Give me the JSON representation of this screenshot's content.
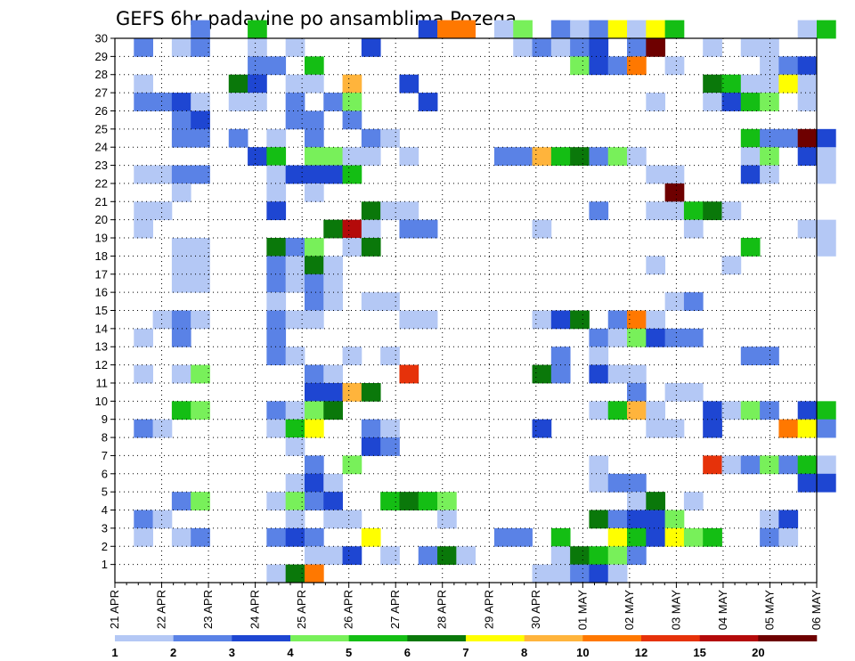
{
  "chart_data": {
    "type": "heatmap",
    "title": "GEFS 6hr padavine po ansamblima Pozega",
    "x_tick_labels": [
      "21 APR",
      "22 APR",
      "23 APR",
      "24 APR",
      "25 APR",
      "26 APR",
      "27 APR",
      "28 APR",
      "29 APR",
      "30 APR",
      "01 MAY",
      "02 MAY",
      "03 MAY",
      "04 MAY",
      "05 MAY",
      "06 MAY"
    ],
    "y_tick_labels": [
      "1",
      "2",
      "3",
      "4",
      "5",
      "6",
      "7",
      "8",
      "9",
      "10",
      "11",
      "12",
      "13",
      "14",
      "15",
      "16",
      "17",
      "18",
      "19",
      "20",
      "21",
      "22",
      "23",
      "24",
      "25",
      "26",
      "27",
      "28",
      "29",
      "30"
    ],
    "y_range": [
      0,
      30
    ],
    "x_range_hours": [
      0,
      360
    ],
    "time_step_hours": 6,
    "grid": "dotted",
    "colorbar": {
      "levels": [
        "1",
        "2",
        "3",
        "4",
        "5",
        "6",
        "7",
        "8",
        "10",
        "12",
        "15",
        "20"
      ],
      "colors": [
        "#b4c8f5",
        "#5a82e6",
        "#1e46d2",
        "#78f05a",
        "#14be14",
        "#0a780a",
        "#ffff00",
        "#ffb43c",
        "#ff7800",
        "#e6320a",
        "#b40a0a",
        "#6e0000"
      ]
    },
    "class_meaning": "0:1-2, 1:2-3, 2:3-4, 3:4-5, 4:5-6, 5:6-7, 6:7-8, 7:8-10, 8:10-12, 9:12-15, 10:15-20, 11:>20 mm",
    "cells": [
      [
        30,
        4,
        1
      ],
      [
        30,
        7,
        4
      ],
      [
        30,
        16,
        2
      ],
      [
        30,
        17,
        8
      ],
      [
        30,
        18,
        8
      ],
      [
        30,
        20,
        0
      ],
      [
        30,
        21,
        3
      ],
      [
        30,
        23,
        1
      ],
      [
        30,
        24,
        0
      ],
      [
        30,
        25,
        1
      ],
      [
        30,
        26,
        6
      ],
      [
        30,
        27,
        0
      ],
      [
        30,
        28,
        6
      ],
      [
        30,
        29,
        4
      ],
      [
        30,
        36,
        0
      ],
      [
        30,
        37,
        4
      ],
      [
        29,
        1,
        1
      ],
      [
        29,
        3,
        0
      ],
      [
        29,
        4,
        1
      ],
      [
        29,
        7,
        0
      ],
      [
        29,
        9,
        0
      ],
      [
        29,
        13,
        2
      ],
      [
        29,
        21,
        0
      ],
      [
        29,
        22,
        1
      ],
      [
        29,
        23,
        0
      ],
      [
        29,
        24,
        1
      ],
      [
        29,
        25,
        2
      ],
      [
        29,
        27,
        1
      ],
      [
        29,
        28,
        11
      ],
      [
        29,
        31,
        0
      ],
      [
        29,
        33,
        0
      ],
      [
        29,
        34,
        0
      ],
      [
        28,
        7,
        1
      ],
      [
        28,
        8,
        1
      ],
      [
        28,
        10,
        4
      ],
      [
        28,
        24,
        3
      ],
      [
        28,
        25,
        2
      ],
      [
        28,
        26,
        1
      ],
      [
        28,
        27,
        8
      ],
      [
        28,
        29,
        0
      ],
      [
        28,
        34,
        0
      ],
      [
        28,
        35,
        1
      ],
      [
        28,
        36,
        2
      ],
      [
        27,
        1,
        0
      ],
      [
        27,
        6,
        5
      ],
      [
        27,
        7,
        2
      ],
      [
        27,
        9,
        0
      ],
      [
        27,
        10,
        0
      ],
      [
        27,
        12,
        7
      ],
      [
        27,
        15,
        2
      ],
      [
        27,
        31,
        5
      ],
      [
        27,
        32,
        4
      ],
      [
        27,
        33,
        0
      ],
      [
        27,
        34,
        0
      ],
      [
        27,
        35,
        6
      ],
      [
        27,
        36,
        0
      ],
      [
        26,
        1,
        1
      ],
      [
        26,
        2,
        1
      ],
      [
        26,
        3,
        2
      ],
      [
        26,
        4,
        0
      ],
      [
        26,
        6,
        0
      ],
      [
        26,
        7,
        0
      ],
      [
        26,
        9,
        1
      ],
      [
        26,
        11,
        1
      ],
      [
        26,
        12,
        3
      ],
      [
        26,
        16,
        2
      ],
      [
        26,
        28,
        0
      ],
      [
        26,
        31,
        0
      ],
      [
        26,
        32,
        2
      ],
      [
        26,
        33,
        4
      ],
      [
        26,
        34,
        3
      ],
      [
        26,
        36,
        0
      ],
      [
        25,
        3,
        1
      ],
      [
        25,
        4,
        2
      ],
      [
        25,
        9,
        1
      ],
      [
        25,
        10,
        1
      ],
      [
        25,
        12,
        1
      ],
      [
        24,
        3,
        1
      ],
      [
        24,
        4,
        1
      ],
      [
        24,
        6,
        1
      ],
      [
        24,
        8,
        0
      ],
      [
        24,
        10,
        1
      ],
      [
        24,
        13,
        1
      ],
      [
        24,
        14,
        0
      ],
      [
        24,
        33,
        4
      ],
      [
        24,
        34,
        1
      ],
      [
        24,
        35,
        1
      ],
      [
        24,
        36,
        11
      ],
      [
        24,
        37,
        2
      ],
      [
        23,
        7,
        2
      ],
      [
        23,
        8,
        4
      ],
      [
        23,
        10,
        3
      ],
      [
        23,
        11,
        3
      ],
      [
        23,
        12,
        0
      ],
      [
        23,
        13,
        0
      ],
      [
        23,
        15,
        0
      ],
      [
        23,
        20,
        1
      ],
      [
        23,
        21,
        1
      ],
      [
        23,
        22,
        7
      ],
      [
        23,
        23,
        4
      ],
      [
        23,
        24,
        5
      ],
      [
        23,
        25,
        1
      ],
      [
        23,
        26,
        3
      ],
      [
        23,
        27,
        0
      ],
      [
        23,
        33,
        0
      ],
      [
        23,
        34,
        3
      ],
      [
        23,
        36,
        2
      ],
      [
        23,
        37,
        0
      ],
      [
        22,
        1,
        0
      ],
      [
        22,
        2,
        0
      ],
      [
        22,
        3,
        1
      ],
      [
        22,
        4,
        1
      ],
      [
        22,
        8,
        0
      ],
      [
        22,
        9,
        2
      ],
      [
        22,
        10,
        2
      ],
      [
        22,
        11,
        2
      ],
      [
        22,
        12,
        4
      ],
      [
        22,
        28,
        0
      ],
      [
        22,
        29,
        0
      ],
      [
        22,
        33,
        2
      ],
      [
        22,
        34,
        0
      ],
      [
        22,
        37,
        0
      ],
      [
        21,
        3,
        0
      ],
      [
        21,
        8,
        0
      ],
      [
        21,
        10,
        0
      ],
      [
        21,
        29,
        11
      ],
      [
        20,
        1,
        0
      ],
      [
        20,
        2,
        0
      ],
      [
        20,
        8,
        2
      ],
      [
        20,
        13,
        5
      ],
      [
        20,
        14,
        0
      ],
      [
        20,
        15,
        0
      ],
      [
        20,
        25,
        1
      ],
      [
        20,
        28,
        0
      ],
      [
        20,
        29,
        0
      ],
      [
        20,
        30,
        4
      ],
      [
        20,
        31,
        5
      ],
      [
        20,
        32,
        0
      ],
      [
        19,
        1,
        0
      ],
      [
        19,
        11,
        5
      ],
      [
        19,
        12,
        10
      ],
      [
        19,
        13,
        0
      ],
      [
        19,
        15,
        1
      ],
      [
        19,
        16,
        1
      ],
      [
        19,
        22,
        0
      ],
      [
        19,
        30,
        0
      ],
      [
        19,
        36,
        0
      ],
      [
        19,
        37,
        0
      ],
      [
        18,
        3,
        0
      ],
      [
        18,
        4,
        0
      ],
      [
        18,
        8,
        5
      ],
      [
        18,
        9,
        1
      ],
      [
        18,
        10,
        3
      ],
      [
        18,
        12,
        0
      ],
      [
        18,
        13,
        5
      ],
      [
        18,
        33,
        4
      ],
      [
        18,
        37,
        0
      ],
      [
        17,
        3,
        0
      ],
      [
        17,
        4,
        0
      ],
      [
        17,
        8,
        1
      ],
      [
        17,
        9,
        0
      ],
      [
        17,
        10,
        5
      ],
      [
        17,
        11,
        0
      ],
      [
        17,
        28,
        0
      ],
      [
        17,
        32,
        0
      ],
      [
        16,
        3,
        0
      ],
      [
        16,
        4,
        0
      ],
      [
        16,
        8,
        1
      ],
      [
        16,
        9,
        0
      ],
      [
        16,
        10,
        1
      ],
      [
        16,
        11,
        0
      ],
      [
        15,
        8,
        0
      ],
      [
        15,
        10,
        1
      ],
      [
        15,
        11,
        0
      ],
      [
        15,
        13,
        0
      ],
      [
        15,
        14,
        0
      ],
      [
        15,
        29,
        0
      ],
      [
        15,
        30,
        1
      ],
      [
        14,
        2,
        0
      ],
      [
        14,
        3,
        1
      ],
      [
        14,
        4,
        0
      ],
      [
        14,
        8,
        1
      ],
      [
        14,
        9,
        0
      ],
      [
        14,
        10,
        0
      ],
      [
        14,
        15,
        0
      ],
      [
        14,
        16,
        0
      ],
      [
        14,
        22,
        0
      ],
      [
        14,
        23,
        2
      ],
      [
        14,
        24,
        5
      ],
      [
        14,
        26,
        1
      ],
      [
        14,
        27,
        8
      ],
      [
        14,
        28,
        0
      ],
      [
        13,
        1,
        0
      ],
      [
        13,
        3,
        1
      ],
      [
        13,
        8,
        1
      ],
      [
        13,
        25,
        1
      ],
      [
        13,
        26,
        0
      ],
      [
        13,
        27,
        3
      ],
      [
        13,
        28,
        2
      ],
      [
        13,
        29,
        1
      ],
      [
        13,
        30,
        1
      ],
      [
        12,
        8,
        1
      ],
      [
        12,
        9,
        0
      ],
      [
        12,
        12,
        0
      ],
      [
        12,
        14,
        0
      ],
      [
        12,
        23,
        1
      ],
      [
        12,
        25,
        0
      ],
      [
        12,
        33,
        1
      ],
      [
        12,
        34,
        1
      ],
      [
        11,
        1,
        0
      ],
      [
        11,
        3,
        0
      ],
      [
        11,
        4,
        3
      ],
      [
        11,
        10,
        1
      ],
      [
        11,
        11,
        0
      ],
      [
        11,
        15,
        9
      ],
      [
        11,
        22,
        5
      ],
      [
        11,
        23,
        1
      ],
      [
        11,
        25,
        2
      ],
      [
        11,
        26,
        0
      ],
      [
        11,
        27,
        0
      ],
      [
        10,
        10,
        2
      ],
      [
        10,
        11,
        2
      ],
      [
        10,
        12,
        7
      ],
      [
        10,
        13,
        5
      ],
      [
        10,
        27,
        1
      ],
      [
        10,
        29,
        0
      ],
      [
        10,
        30,
        0
      ],
      [
        9,
        3,
        4
      ],
      [
        9,
        4,
        3
      ],
      [
        9,
        8,
        1
      ],
      [
        9,
        9,
        0
      ],
      [
        9,
        10,
        3
      ],
      [
        9,
        11,
        5
      ],
      [
        9,
        25,
        0
      ],
      [
        9,
        26,
        4
      ],
      [
        9,
        27,
        7
      ],
      [
        9,
        28,
        0
      ],
      [
        9,
        31,
        2
      ],
      [
        9,
        32,
        0
      ],
      [
        9,
        33,
        3
      ],
      [
        9,
        34,
        1
      ],
      [
        9,
        36,
        2
      ],
      [
        9,
        37,
        4
      ],
      [
        8,
        1,
        1
      ],
      [
        8,
        2,
        0
      ],
      [
        8,
        8,
        0
      ],
      [
        8,
        9,
        4
      ],
      [
        8,
        10,
        6
      ],
      [
        8,
        13,
        1
      ],
      [
        8,
        14,
        0
      ],
      [
        8,
        22,
        2
      ],
      [
        8,
        28,
        0
      ],
      [
        8,
        29,
        0
      ],
      [
        8,
        31,
        2
      ],
      [
        8,
        35,
        8
      ],
      [
        8,
        36,
        6
      ],
      [
        8,
        37,
        1
      ],
      [
        7,
        9,
        0
      ],
      [
        7,
        13,
        2
      ],
      [
        7,
        14,
        1
      ],
      [
        6,
        10,
        1
      ],
      [
        6,
        12,
        3
      ],
      [
        6,
        25,
        0
      ],
      [
        6,
        31,
        9
      ],
      [
        6,
        32,
        0
      ],
      [
        6,
        33,
        1
      ],
      [
        6,
        34,
        3
      ],
      [
        6,
        35,
        1
      ],
      [
        6,
        36,
        4
      ],
      [
        6,
        37,
        0
      ],
      [
        5,
        9,
        0
      ],
      [
        5,
        10,
        2
      ],
      [
        5,
        11,
        0
      ],
      [
        5,
        25,
        0
      ],
      [
        5,
        26,
        1
      ],
      [
        5,
        27,
        1
      ],
      [
        5,
        36,
        2
      ],
      [
        5,
        37,
        2
      ],
      [
        4,
        3,
        1
      ],
      [
        4,
        4,
        3
      ],
      [
        4,
        8,
        0
      ],
      [
        4,
        9,
        3
      ],
      [
        4,
        10,
        1
      ],
      [
        4,
        11,
        2
      ],
      [
        4,
        14,
        4
      ],
      [
        4,
        15,
        5
      ],
      [
        4,
        16,
        4
      ],
      [
        4,
        17,
        3
      ],
      [
        4,
        27,
        0
      ],
      [
        4,
        28,
        5
      ],
      [
        4,
        30,
        0
      ],
      [
        3,
        1,
        1
      ],
      [
        3,
        2,
        0
      ],
      [
        3,
        9,
        0
      ],
      [
        3,
        11,
        0
      ],
      [
        3,
        12,
        0
      ],
      [
        3,
        17,
        0
      ],
      [
        3,
        25,
        5
      ],
      [
        3,
        26,
        1
      ],
      [
        3,
        27,
        2
      ],
      [
        3,
        28,
        2
      ],
      [
        3,
        29,
        3
      ],
      [
        3,
        34,
        0
      ],
      [
        3,
        35,
        2
      ],
      [
        2,
        1,
        0
      ],
      [
        2,
        3,
        0
      ],
      [
        2,
        4,
        1
      ],
      [
        2,
        8,
        1
      ],
      [
        2,
        9,
        2
      ],
      [
        2,
        10,
        1
      ],
      [
        2,
        13,
        6
      ],
      [
        2,
        20,
        1
      ],
      [
        2,
        21,
        1
      ],
      [
        2,
        23,
        4
      ],
      [
        2,
        26,
        6
      ],
      [
        2,
        27,
        4
      ],
      [
        2,
        28,
        2
      ],
      [
        2,
        29,
        6
      ],
      [
        2,
        30,
        3
      ],
      [
        2,
        31,
        4
      ],
      [
        2,
        34,
        1
      ],
      [
        2,
        35,
        0
      ],
      [
        1,
        10,
        0
      ],
      [
        1,
        11,
        0
      ],
      [
        1,
        12,
        2
      ],
      [
        1,
        14,
        0
      ],
      [
        1,
        16,
        1
      ],
      [
        1,
        17,
        5
      ],
      [
        1,
        18,
        0
      ],
      [
        1,
        23,
        0
      ],
      [
        1,
        24,
        5
      ],
      [
        1,
        25,
        4
      ],
      [
        1,
        26,
        3
      ],
      [
        1,
        27,
        1
      ],
      [
        0,
        8,
        0
      ],
      [
        0,
        9,
        5
      ],
      [
        0,
        10,
        8
      ],
      [
        0,
        22,
        0
      ],
      [
        0,
        23,
        0
      ],
      [
        0,
        24,
        1
      ],
      [
        0,
        25,
        2
      ],
      [
        0,
        26,
        0
      ]
    ]
  }
}
